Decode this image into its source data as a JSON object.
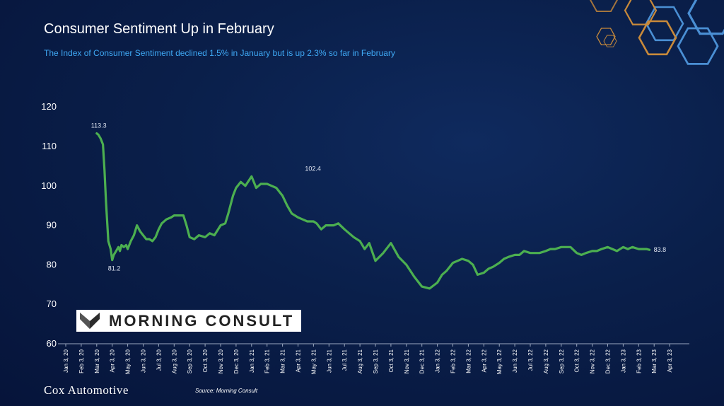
{
  "title": "Consumer Sentiment Up in February",
  "subtitle": "The Index of Consumer Sentiment declined 1.5% in January but is up 2.3% so far in February",
  "logo_text": "MORNING CONSULT",
  "footer_brand": "Cox Automotive",
  "source": "Source: Morning Consult",
  "colors": {
    "line": "#4caf50",
    "subtitle": "#3fa9f5",
    "background": "#0a1f4a"
  },
  "chart_data": {
    "type": "line",
    "title": "Consumer Sentiment Up in February",
    "xlabel": "",
    "ylabel": "",
    "ylim": [
      60,
      120
    ],
    "yticks": [
      60,
      70,
      80,
      90,
      100,
      110,
      120
    ],
    "xticks": [
      "Jan 3, 20",
      "Feb 3, 20",
      "Mar 3, 20",
      "Apr 3, 20",
      "May 3, 20",
      "Jun 3, 20",
      "Jul 3, 20",
      "Aug 3, 20",
      "Sep 3, 20",
      "Oct 3, 20",
      "Nov 3, 20",
      "Dec 3, 20",
      "Jan 3, 21",
      "Feb 3, 21",
      "Mar 3, 21",
      "Apr 3, 21",
      "May 3, 21",
      "Jun 3, 21",
      "Jul 3, 21",
      "Aug 3, 21",
      "Sep 3, 21",
      "Oct 3, 21",
      "Nov 3, 21",
      "Dec 3, 21",
      "Jan 3, 22",
      "Feb 3, 22",
      "Mar 3, 22",
      "Apr 3, 22",
      "May 3, 22",
      "Jun 3, 22",
      "Jul 3, 22",
      "Aug 3, 22",
      "Sep 3, 22",
      "Oct 3, 22",
      "Nov 3, 22",
      "Dec 3, 22",
      "Jan 3, 23",
      "Feb 3, 23",
      "Mar 3, 23",
      "Apr 3, 23"
    ],
    "grid": false,
    "series": [
      {
        "x": [
          2.0,
          2.1,
          2.25,
          2.4,
          2.5,
          2.6,
          2.75,
          2.9,
          3.0,
          3.1,
          3.25,
          3.4,
          3.5,
          3.6,
          3.75,
          3.9,
          4.0,
          4.2,
          4.4,
          4.6,
          4.8,
          5.0,
          5.2,
          5.4,
          5.6,
          5.8,
          6.0,
          6.2,
          6.5,
          6.8,
          7.0,
          7.3,
          7.6,
          7.8,
          8.0,
          8.3,
          8.6,
          9.0,
          9.3,
          9.6,
          10.0,
          10.3,
          10.5,
          10.8,
          11.0,
          11.3,
          11.6,
          12.0,
          12.3,
          12.6,
          13.0,
          13.3,
          13.6,
          14.0,
          14.3,
          14.6,
          15.0,
          15.3,
          15.6,
          16.0,
          16.2,
          16.5,
          16.8,
          17.0,
          17.3,
          17.6,
          18.0,
          18.3,
          18.6,
          19.0,
          19.3,
          19.6,
          20.0,
          20.5,
          21.0,
          21.5,
          22.0,
          22.5,
          23.0,
          23.5,
          24.0,
          24.3,
          24.6,
          25.0,
          25.3,
          25.6,
          26.0,
          26.3,
          26.6,
          27.0,
          27.3,
          27.6,
          28.0,
          28.3,
          28.6,
          29.0,
          29.3,
          29.6,
          30.0,
          30.3,
          30.6,
          31.0,
          31.3,
          31.6,
          32.0,
          32.3,
          32.6,
          33.0,
          33.3,
          33.6,
          34.0,
          34.3,
          34.6,
          35.0,
          35.3,
          35.6,
          36.0,
          36.3,
          36.6,
          37.0,
          37.3,
          37.5,
          37.7
        ],
        "values": [
          113.3,
          113.0,
          112.0,
          110.5,
          104.0,
          96.0,
          86.0,
          84.0,
          81.2,
          82.5,
          83.5,
          84.5,
          83.5,
          85.0,
          84.5,
          85.0,
          84.0,
          86.0,
          87.5,
          90.0,
          88.5,
          87.5,
          86.5,
          86.5,
          86.0,
          87.0,
          89.0,
          90.5,
          91.5,
          92.0,
          92.5,
          92.5,
          92.5,
          90.0,
          87.0,
          86.5,
          87.5,
          87.0,
          88.0,
          87.5,
          90.0,
          90.5,
          93.0,
          97.5,
          99.5,
          101.0,
          100.0,
          102.4,
          99.5,
          100.5,
          100.5,
          100.0,
          99.5,
          97.5,
          95.0,
          93.0,
          92.0,
          91.5,
          91.0,
          91.0,
          90.5,
          89.0,
          90.0,
          90.0,
          90.0,
          90.5,
          89.0,
          88.0,
          87.0,
          86.0,
          84.0,
          85.5,
          81.0,
          83.0,
          85.5,
          82.0,
          80.0,
          77.0,
          74.5,
          74.0,
          75.5,
          77.5,
          78.5,
          80.5,
          81.0,
          81.5,
          81.0,
          80.0,
          77.5,
          78.0,
          79.0,
          79.5,
          80.5,
          81.5,
          82.0,
          82.5,
          82.5,
          83.5,
          83.0,
          83.0,
          83.0,
          83.5,
          84.0,
          84.0,
          84.5,
          84.5,
          84.5,
          83.0,
          82.5,
          83.0,
          83.5,
          83.5,
          84.0,
          84.5,
          84.0,
          83.5,
          84.5,
          84.0,
          84.5,
          84.0,
          84.0,
          84.0,
          83.8
        ],
        "color": "#4caf50"
      }
    ],
    "annotations": [
      {
        "x": 2.0,
        "y": 113.3,
        "text": "113.3"
      },
      {
        "x": 3.0,
        "y": 81.2,
        "text": "81.2"
      },
      {
        "x": 16.0,
        "y": 102.4,
        "text": "102.4"
      },
      {
        "x": 37.7,
        "y": 83.8,
        "text": "83.8"
      }
    ]
  }
}
